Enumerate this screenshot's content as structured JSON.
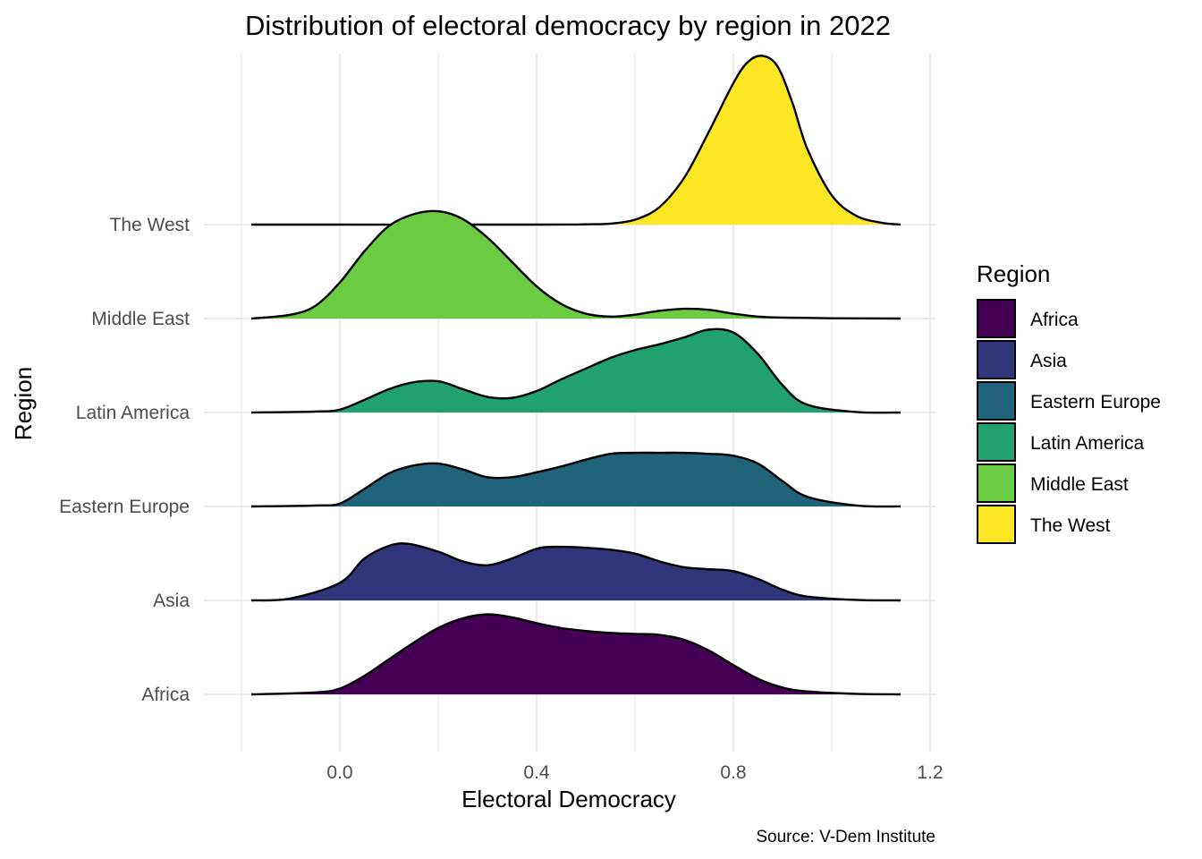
{
  "chart_data": {
    "type": "ridgeline",
    "title": "Distribution of electoral democracy by region in 2022",
    "xlabel": "Electoral Democracy",
    "ylabel": "Region",
    "caption": "Source: V-Dem Institute",
    "xlim": [
      -0.2,
      1.2
    ],
    "x_ticks": [
      0.0,
      0.4,
      0.8,
      1.2
    ],
    "x_tick_labels": [
      "0.0",
      "0.4",
      "0.8",
      "1.2"
    ],
    "grid": true,
    "legend": {
      "title": "Region",
      "position": "right"
    },
    "series": [
      {
        "name": "Africa",
        "color": "#440154",
        "x": [
          -0.18,
          -0.05,
          0.0,
          0.05,
          0.1,
          0.15,
          0.2,
          0.25,
          0.3,
          0.35,
          0.4,
          0.45,
          0.5,
          0.55,
          0.6,
          0.65,
          0.7,
          0.75,
          0.8,
          0.85,
          0.9,
          0.95,
          1.05,
          1.14
        ],
        "density": [
          0,
          0.02,
          0.06,
          0.19,
          0.36,
          0.53,
          0.68,
          0.78,
          0.82,
          0.79,
          0.73,
          0.68,
          0.65,
          0.63,
          0.62,
          0.61,
          0.56,
          0.45,
          0.3,
          0.16,
          0.07,
          0.03,
          0.005,
          0
        ]
      },
      {
        "name": "Asia",
        "color": "#31357a",
        "x": [
          -0.18,
          -0.1,
          0.0,
          0.05,
          0.1,
          0.14,
          0.2,
          0.25,
          0.3,
          0.35,
          0.4,
          0.44,
          0.5,
          0.55,
          0.6,
          0.65,
          0.7,
          0.75,
          0.8,
          0.85,
          0.9,
          0.95,
          1.05,
          1.14
        ],
        "density": [
          0,
          0.02,
          0.18,
          0.43,
          0.56,
          0.58,
          0.5,
          0.4,
          0.36,
          0.43,
          0.53,
          0.55,
          0.54,
          0.52,
          0.48,
          0.4,
          0.34,
          0.32,
          0.3,
          0.22,
          0.11,
          0.04,
          0.005,
          0
        ]
      },
      {
        "name": "Eastern Europe",
        "color": "#21637a",
        "x": [
          -0.18,
          -0.05,
          0.0,
          0.05,
          0.1,
          0.15,
          0.2,
          0.25,
          0.3,
          0.35,
          0.4,
          0.45,
          0.5,
          0.55,
          0.6,
          0.65,
          0.7,
          0.75,
          0.8,
          0.85,
          0.9,
          0.95,
          1.05,
          1.14
        ],
        "density": [
          0,
          0.01,
          0.03,
          0.18,
          0.34,
          0.42,
          0.44,
          0.38,
          0.3,
          0.3,
          0.35,
          0.41,
          0.48,
          0.54,
          0.55,
          0.55,
          0.55,
          0.54,
          0.52,
          0.44,
          0.26,
          0.1,
          0.01,
          0
        ]
      },
      {
        "name": "Latin America",
        "color": "#21a070",
        "x": [
          -0.18,
          -0.05,
          0.0,
          0.05,
          0.1,
          0.15,
          0.2,
          0.25,
          0.3,
          0.35,
          0.4,
          0.45,
          0.5,
          0.55,
          0.6,
          0.65,
          0.7,
          0.75,
          0.8,
          0.85,
          0.9,
          0.95,
          1.05,
          1.14
        ],
        "density": [
          0,
          0.01,
          0.03,
          0.13,
          0.24,
          0.31,
          0.32,
          0.24,
          0.16,
          0.15,
          0.22,
          0.34,
          0.45,
          0.56,
          0.64,
          0.7,
          0.77,
          0.85,
          0.82,
          0.6,
          0.28,
          0.08,
          0.005,
          0
        ]
      },
      {
        "name": "Middle East",
        "color": "#6bcb42",
        "x": [
          -0.18,
          -0.1,
          -0.05,
          0.0,
          0.05,
          0.1,
          0.15,
          0.2,
          0.25,
          0.3,
          0.35,
          0.4,
          0.45,
          0.5,
          0.55,
          0.6,
          0.65,
          0.7,
          0.75,
          0.8,
          0.85,
          0.9,
          1.0,
          1.14
        ],
        "density": [
          0,
          0.04,
          0.13,
          0.37,
          0.69,
          0.95,
          1.07,
          1.1,
          1.02,
          0.83,
          0.58,
          0.33,
          0.15,
          0.05,
          0.02,
          0.04,
          0.08,
          0.1,
          0.09,
          0.05,
          0.02,
          0.01,
          0.003,
          0
        ]
      },
      {
        "name": "The West",
        "color": "#fde725",
        "x": [
          -0.18,
          0.4,
          0.5,
          0.55,
          0.6,
          0.65,
          0.7,
          0.75,
          0.8,
          0.83,
          0.86,
          0.89,
          0.92,
          0.95,
          1.0,
          1.05,
          1.1,
          1.14
        ],
        "density": [
          0,
          0,
          0.003,
          0.01,
          0.05,
          0.18,
          0.48,
          0.95,
          1.45,
          1.67,
          1.73,
          1.62,
          1.25,
          0.78,
          0.3,
          0.09,
          0.02,
          0
        ]
      }
    ]
  }
}
